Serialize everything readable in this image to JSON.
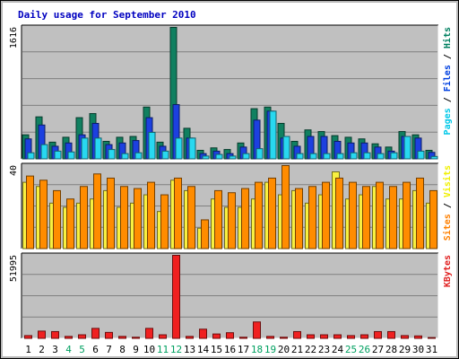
{
  "chart_data": {
    "type": "bar",
    "title": "Daily usage for September 2010",
    "categories": [
      "1",
      "2",
      "3",
      "4",
      "5",
      "6",
      "7",
      "8",
      "9",
      "10",
      "11",
      "12",
      "13",
      "14",
      "15",
      "16",
      "17",
      "18",
      "19",
      "20",
      "21",
      "22",
      "23",
      "24",
      "25",
      "26",
      "27",
      "28",
      "29",
      "30",
      "31"
    ],
    "weekend_days": [
      "4",
      "5",
      "11",
      "12",
      "18",
      "19",
      "25",
      "26"
    ],
    "grid": true,
    "legend": "right",
    "panels": [
      {
        "id": "hits",
        "ymax": 1616,
        "ymax_label": "1616",
        "legend_parts": [
          {
            "label": "Pages",
            "color": "#00c8e8"
          },
          {
            "label": " / ",
            "color": "#000000"
          },
          {
            "label": "Files",
            "color": "#0040e0"
          },
          {
            "label": " / ",
            "color": "#000000"
          },
          {
            "label": "Hits",
            "color": "#008060"
          }
        ],
        "series": [
          {
            "name": "Hits",
            "color": "#108060",
            "values": [
              300,
              520,
              210,
              270,
              510,
              560,
              220,
              270,
              280,
              640,
              210,
              1616,
              380,
              110,
              140,
              120,
              200,
              620,
              640,
              440,
              220,
              360,
              340,
              290,
              270,
              250,
              190,
              150,
              340,
              300,
              110
            ]
          },
          {
            "name": "Files",
            "color": "#1c40e0",
            "values": [
              250,
              420,
              160,
              200,
              300,
              440,
              180,
              200,
              230,
              510,
              160,
              670,
              260,
              70,
              100,
              70,
              150,
              480,
              590,
              260,
              160,
              280,
              280,
              220,
              200,
              200,
              150,
              100,
              280,
              260,
              85
            ]
          },
          {
            "name": "Pages",
            "color": "#28d8f0",
            "values": [
              80,
              180,
              100,
              90,
              260,
              260,
              120,
              70,
              80,
              330,
              100,
              260,
              260,
              40,
              60,
              40,
              70,
              130,
              590,
              280,
              70,
              70,
              70,
              70,
              80,
              80,
              70,
              80,
              280,
              100,
              35
            ]
          }
        ]
      },
      {
        "id": "visits",
        "ymax": 40,
        "ymax_label": "40",
        "legend_parts": [
          {
            "label": "Sites",
            "color": "#ff8000"
          },
          {
            "label": " / ",
            "color": "#000000"
          },
          {
            "label": "Visits",
            "color": "#f0f000"
          }
        ],
        "series": [
          {
            "name": "Visits",
            "color": "#f8f040",
            "values": [
              32,
              30,
              22,
              20,
              22,
              24,
              28,
              20,
              22,
              26,
              18,
              33,
              28,
              10,
              24,
              20,
              20,
              24,
              32,
              26,
              28,
              22,
              26,
              37,
              24,
              26,
              30,
              24,
              24,
              28,
              22
            ]
          },
          {
            "name": "Sites",
            "color": "#ff8c00",
            "values": [
              35,
              33,
              28,
              24,
              30,
              36,
              34,
              30,
              29,
              32,
              26,
              34,
              30,
              14,
              28,
              27,
              29,
              32,
              34,
              40,
              29,
              30,
              32,
              34,
              32,
              30,
              32,
              30,
              32,
              34,
              28
            ]
          }
        ]
      },
      {
        "id": "kbytes",
        "ymax": 51995,
        "ymax_label": "51995",
        "legend_parts": [
          {
            "label": "KBytes",
            "color": "#e02020"
          }
        ],
        "series": [
          {
            "name": "KBytes",
            "color": "#f02020",
            "values": [
              2000,
              4800,
              4500,
              1500,
              2500,
              6500,
              4000,
              1500,
              1000,
              6500,
              2500,
              51995,
              1500,
              6000,
              3000,
              3800,
              1000,
              10500,
              1500,
              1000,
              4500,
              2500,
              2500,
              2500,
              2000,
              2500,
              4500,
              4500,
              2000,
              1800,
              800
            ]
          }
        ]
      }
    ]
  }
}
